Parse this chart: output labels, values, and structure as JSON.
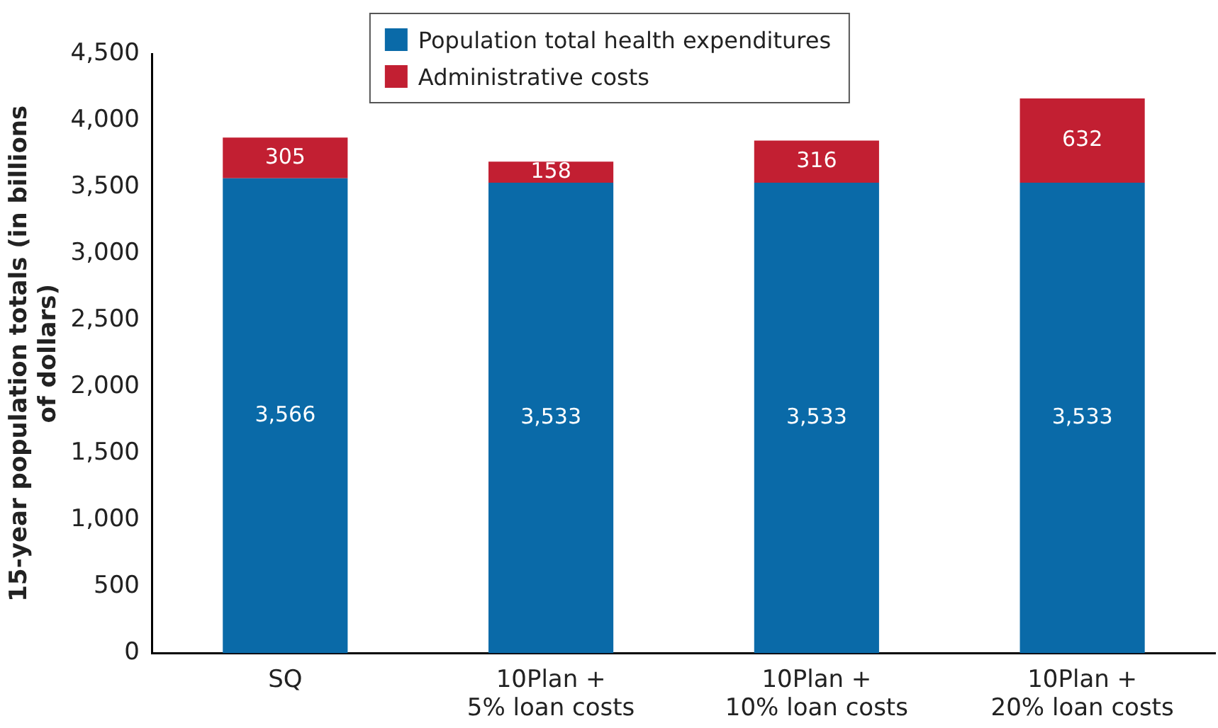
{
  "chart_data": {
    "type": "bar",
    "stacked": true,
    "categories": [
      "SQ",
      "10Plan +\n5% loan costs",
      "10Plan +\n10% loan costs",
      "10Plan +\n20% loan costs"
    ],
    "series": [
      {
        "name": "Population total health expenditures",
        "color": "#0a6aa8",
        "values": [
          3566,
          3533,
          3533,
          3533
        ],
        "value_labels": [
          "3,566",
          "3,533",
          "3,533",
          "3,533"
        ]
      },
      {
        "name": "Administrative costs",
        "color": "#c21f32",
        "values": [
          305,
          158,
          316,
          632
        ],
        "value_labels": [
          "305",
          "158",
          "316",
          "632"
        ]
      }
    ],
    "ylabel": "15-year population totals (in billions\nof dollars)",
    "ylim": [
      0,
      4500
    ],
    "yticks": [
      0,
      500,
      {
        "value": 1000,
        "label": "1,000"
      },
      {
        "value": 1500,
        "label": "1,500"
      },
      {
        "value": 2000,
        "label": "2,000"
      },
      {
        "value": 2500,
        "label": "2,500"
      },
      {
        "value": 3000,
        "label": "3,000"
      },
      {
        "value": 3500,
        "label": "3,500"
      },
      {
        "value": 4000,
        "label": "4,000"
      },
      {
        "value": 4500,
        "label": "4,500"
      }
    ],
    "legend": "top",
    "grid": false
  }
}
